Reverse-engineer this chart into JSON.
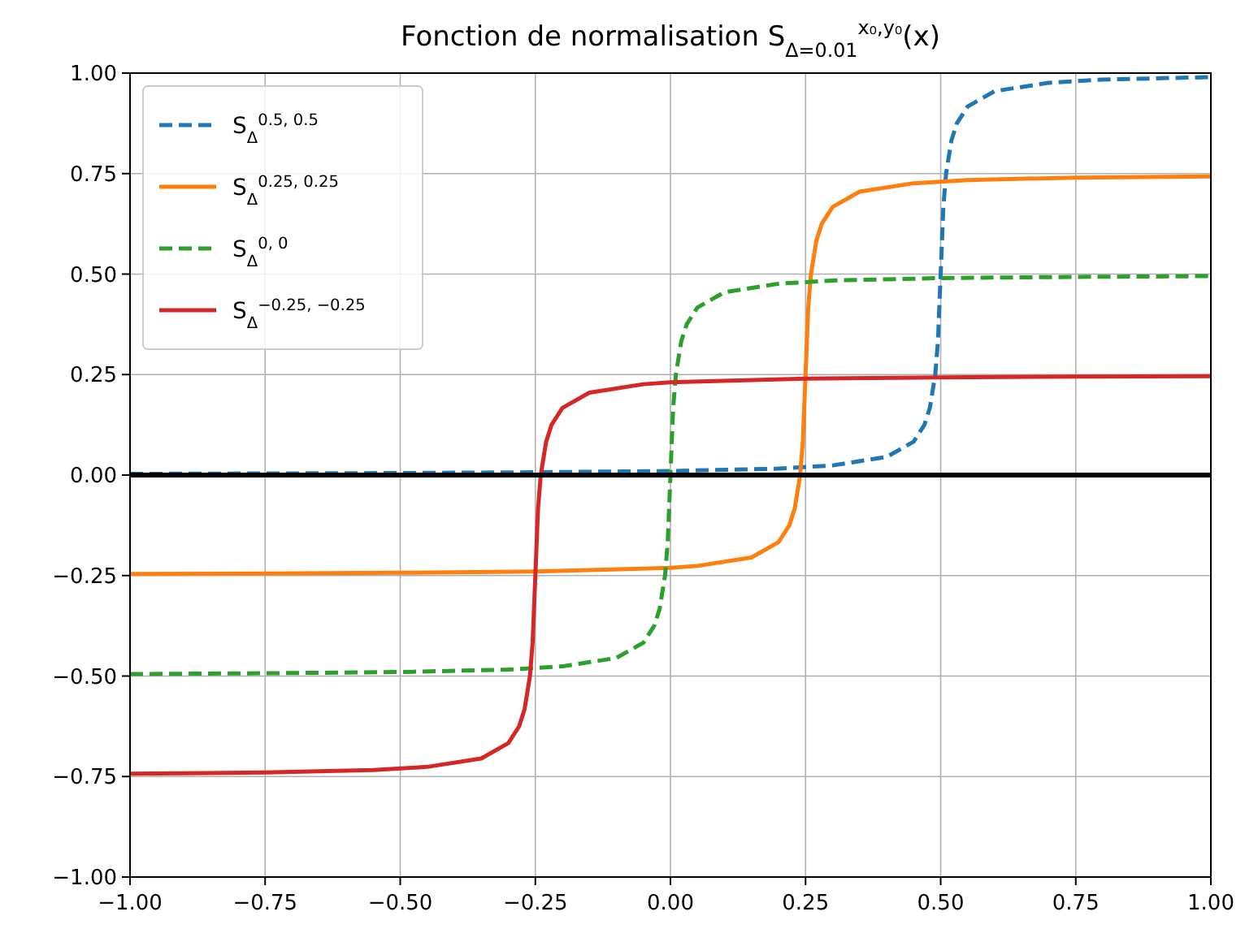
{
  "chart_data": {
    "type": "line",
    "title": "Fonction de normalisation S$_{Δ=0.01}$$^{x₀,y₀}$(x)",
    "xlim": [
      -1,
      1
    ],
    "ylim": [
      -1,
      1
    ],
    "xticks": [
      {
        "value": -1,
        "label": "−1.00"
      },
      {
        "value": -0.75,
        "label": "−0.75"
      },
      {
        "value": -0.5,
        "label": "−0.50"
      },
      {
        "value": -0.25,
        "label": "−0.25"
      },
      {
        "value": 0,
        "label": "0.00"
      },
      {
        "value": 0.25,
        "label": "0.25"
      },
      {
        "value": 0.5,
        "label": "0.50"
      },
      {
        "value": 0.75,
        "label": "0.75"
      },
      {
        "value": 1,
        "label": "1.00"
      }
    ],
    "yticks": [
      {
        "value": -1,
        "label": "−1.00"
      },
      {
        "value": -0.75,
        "label": "−0.75"
      },
      {
        "value": -0.5,
        "label": "−0.50"
      },
      {
        "value": -0.25,
        "label": "−0.25"
      },
      {
        "value": 0,
        "label": "0.00"
      },
      {
        "value": 0.25,
        "label": "0.25"
      },
      {
        "value": 0.5,
        "label": "0.50"
      },
      {
        "value": 0.75,
        "label": "0.75"
      },
      {
        "value": 1,
        "label": "1.00"
      }
    ],
    "grid": true,
    "legend": "top left",
    "ref_lines": [
      {
        "axis": "y",
        "value": 0,
        "color": "#000000",
        "line_style": "solid"
      }
    ],
    "series": [
      {
        "name": "S$_{Δ}$$^{0.5, 0.5}$",
        "color": "#1f77b4",
        "line_style": "dashed",
        "x": [
          -1,
          -0.75,
          -0.5,
          -0.25,
          0,
          0.2,
          0.3,
          0.4,
          0.45,
          0.47,
          0.48,
          0.49,
          0.495,
          0.5,
          0.505,
          0.51,
          0.52,
          0.53,
          0.55,
          0.6,
          0.7,
          0.8,
          1
        ],
        "values": [
          0.003,
          0.004,
          0.005,
          0.007,
          0.01,
          0.016,
          0.024,
          0.045,
          0.083,
          0.125,
          0.167,
          0.25,
          0.333,
          0.5,
          0.667,
          0.75,
          0.833,
          0.875,
          0.917,
          0.955,
          0.976,
          0.984,
          0.99
        ]
      },
      {
        "name": "S$_{Δ}$$^{0.25, 0.25}$",
        "color": "#ff7f0e",
        "line_style": "solid",
        "x": [
          -1,
          -0.75,
          -0.5,
          -0.25,
          0,
          0.05,
          0.15,
          0.2,
          0.22,
          0.23,
          0.24,
          0.245,
          0.25,
          0.255,
          0.26,
          0.27,
          0.28,
          0.3,
          0.35,
          0.45,
          0.55,
          0.75,
          1
        ],
        "values": [
          -0.246,
          -0.245,
          -0.243,
          -0.24,
          -0.231,
          -0.226,
          -0.205,
          -0.167,
          -0.125,
          -0.083,
          0,
          0.083,
          0.25,
          0.417,
          0.5,
          0.583,
          0.625,
          0.667,
          0.705,
          0.726,
          0.734,
          0.74,
          0.743
        ]
      },
      {
        "name": "S$_{Δ}$$^{0, 0}$",
        "color": "#2ca02c",
        "line_style": "dashed",
        "x": [
          -1,
          -0.75,
          -0.5,
          -0.3,
          -0.2,
          -0.1,
          -0.05,
          -0.03,
          -0.02,
          -0.01,
          -0.005,
          0,
          0.005,
          0.01,
          0.02,
          0.03,
          0.05,
          0.1,
          0.2,
          0.3,
          0.5,
          0.75,
          1
        ],
        "values": [
          -0.495,
          -0.493,
          -0.49,
          -0.484,
          -0.476,
          -0.455,
          -0.417,
          -0.375,
          -0.333,
          -0.25,
          -0.167,
          0,
          0.167,
          0.25,
          0.333,
          0.375,
          0.417,
          0.455,
          0.476,
          0.484,
          0.49,
          0.493,
          0.495
        ]
      },
      {
        "name": "S$_{Δ}$$^{−0.25, −0.25}$",
        "color": "#d62728",
        "line_style": "solid",
        "x": [
          -1,
          -0.75,
          -0.55,
          -0.45,
          -0.35,
          -0.3,
          -0.28,
          -0.27,
          -0.26,
          -0.255,
          -0.25,
          -0.245,
          -0.24,
          -0.23,
          -0.22,
          -0.2,
          -0.15,
          -0.05,
          0,
          0.25,
          0.5,
          0.75,
          1
        ],
        "values": [
          -0.743,
          -0.74,
          -0.734,
          -0.726,
          -0.705,
          -0.667,
          -0.625,
          -0.583,
          -0.5,
          -0.417,
          -0.25,
          -0.083,
          0,
          0.083,
          0.125,
          0.167,
          0.205,
          0.226,
          0.231,
          0.24,
          0.243,
          0.245,
          0.246
        ]
      }
    ]
  }
}
